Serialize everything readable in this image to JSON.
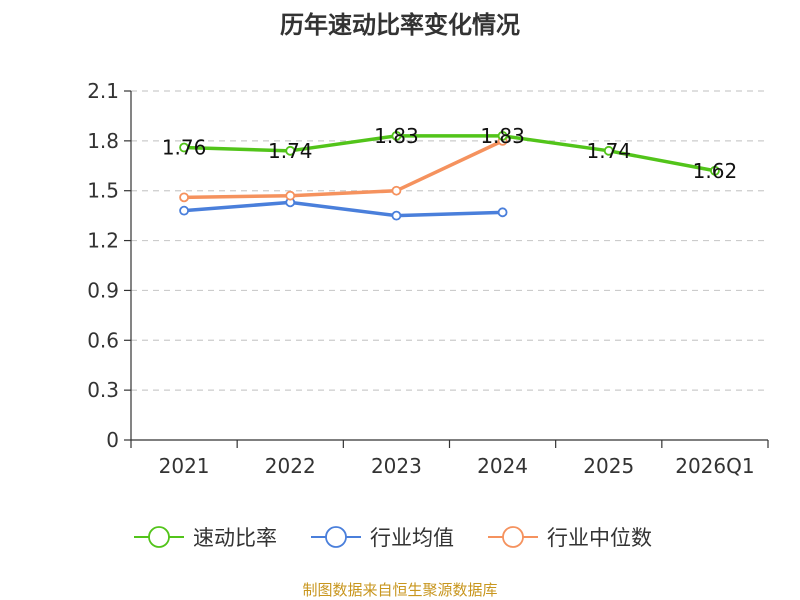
{
  "chart_data": {
    "type": "line",
    "title": "历年速动比率变化情况",
    "categories": [
      "2021",
      "2022",
      "2023",
      "2024",
      "2025",
      "2026Q1"
    ],
    "y_ticks": [
      "0",
      "0.3",
      "0.6",
      "0.9",
      "1.2",
      "1.5",
      "1.8",
      "2.1"
    ],
    "ylim": [
      0,
      2.1
    ],
    "grid": true,
    "legend_position": "bottom",
    "series": [
      {
        "name": "速动比率",
        "color": "#52c41a",
        "values": [
          1.76,
          1.74,
          1.83,
          1.83,
          1.74,
          1.62
        ],
        "labels": [
          "1.76",
          "1.74",
          "1.83",
          "1.83",
          "1.74",
          "1.62"
        ],
        "show_labels": true
      },
      {
        "name": "行业均值",
        "color": "#4a7fdb",
        "values": [
          1.38,
          1.43,
          1.35,
          1.37,
          null,
          null
        ],
        "show_labels": false
      },
      {
        "name": "行业中位数",
        "color": "#f5925e",
        "values": [
          1.46,
          1.47,
          1.5,
          1.8,
          null,
          null
        ],
        "show_labels": false
      }
    ],
    "source": "制图数据来自恒生聚源数据库"
  }
}
